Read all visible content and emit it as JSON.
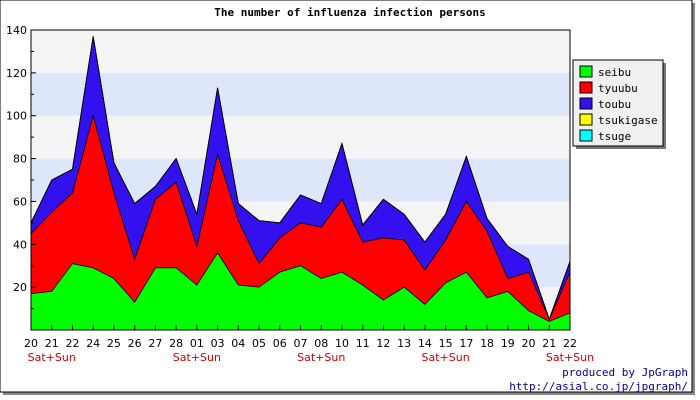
{
  "chart_data": {
    "type": "area",
    "stacked": true,
    "title": "The number of influenza infection persons",
    "x": [
      "20",
      "21",
      "22",
      "24",
      "25",
      "26",
      "27",
      "28",
      "01",
      "03",
      "04",
      "05",
      "06",
      "07",
      "08",
      "10",
      "11",
      "12",
      "13",
      "14",
      "15",
      "17",
      "18",
      "19",
      "20",
      "21",
      "22"
    ],
    "weekend_label": "Sat+Sun",
    "weekend_indices": [
      1,
      8,
      14,
      20,
      26
    ],
    "yticks": [
      "20",
      "40",
      "60",
      "80",
      "100",
      "120",
      "140"
    ],
    "ylim": [
      0,
      140
    ],
    "grid": true,
    "legend_position": "right",
    "series": [
      {
        "name": "seibu",
        "color": "#00ff00",
        "values": [
          17,
          18,
          31,
          29,
          24,
          13,
          29,
          29,
          21,
          36,
          21,
          20,
          27,
          30,
          24,
          27,
          21,
          14,
          20,
          12,
          22,
          27,
          15,
          18,
          9,
          4,
          8
        ]
      },
      {
        "name": "tyuubu",
        "color": "#ff0000",
        "values": [
          28,
          37,
          33,
          71,
          40,
          20,
          32,
          40,
          18,
          46,
          30,
          11,
          16,
          20,
          24,
          34,
          20,
          29,
          22,
          16,
          20,
          33,
          31,
          6,
          18,
          1,
          19
        ]
      },
      {
        "name": "toubu",
        "color": "#3311ee",
        "values": [
          5,
          15,
          11,
          37,
          14,
          26,
          6,
          11,
          15,
          31,
          8,
          20,
          7,
          13,
          11,
          26,
          8,
          18,
          12,
          13,
          12,
          21,
          6,
          15,
          6,
          0,
          5
        ]
      },
      {
        "name": "tsukigase",
        "color": "#ffff00",
        "values": [
          0,
          0,
          0,
          0,
          0,
          0,
          0,
          0,
          0,
          0,
          0,
          0,
          0,
          0,
          0,
          0,
          0,
          0,
          0,
          0,
          0,
          0,
          0,
          0,
          0,
          0,
          0
        ]
      },
      {
        "name": "tsuge",
        "color": "#00ffff",
        "values": [
          0,
          0,
          0,
          0,
          0,
          0,
          0,
          0,
          0,
          0,
          0,
          0,
          0,
          0,
          0,
          0,
          0,
          0,
          0,
          0,
          0,
          0,
          0,
          0,
          0,
          0,
          0
        ]
      }
    ]
  },
  "credits": {
    "line1": "produced by JpGraph",
    "line2": "http://asial.co.jp/jpgraph/"
  },
  "colors": {
    "band_light": "#f4f4f4",
    "band_blue": "#dde6fb",
    "weekend_text": "#cc0000",
    "credit_text": "#000099"
  }
}
